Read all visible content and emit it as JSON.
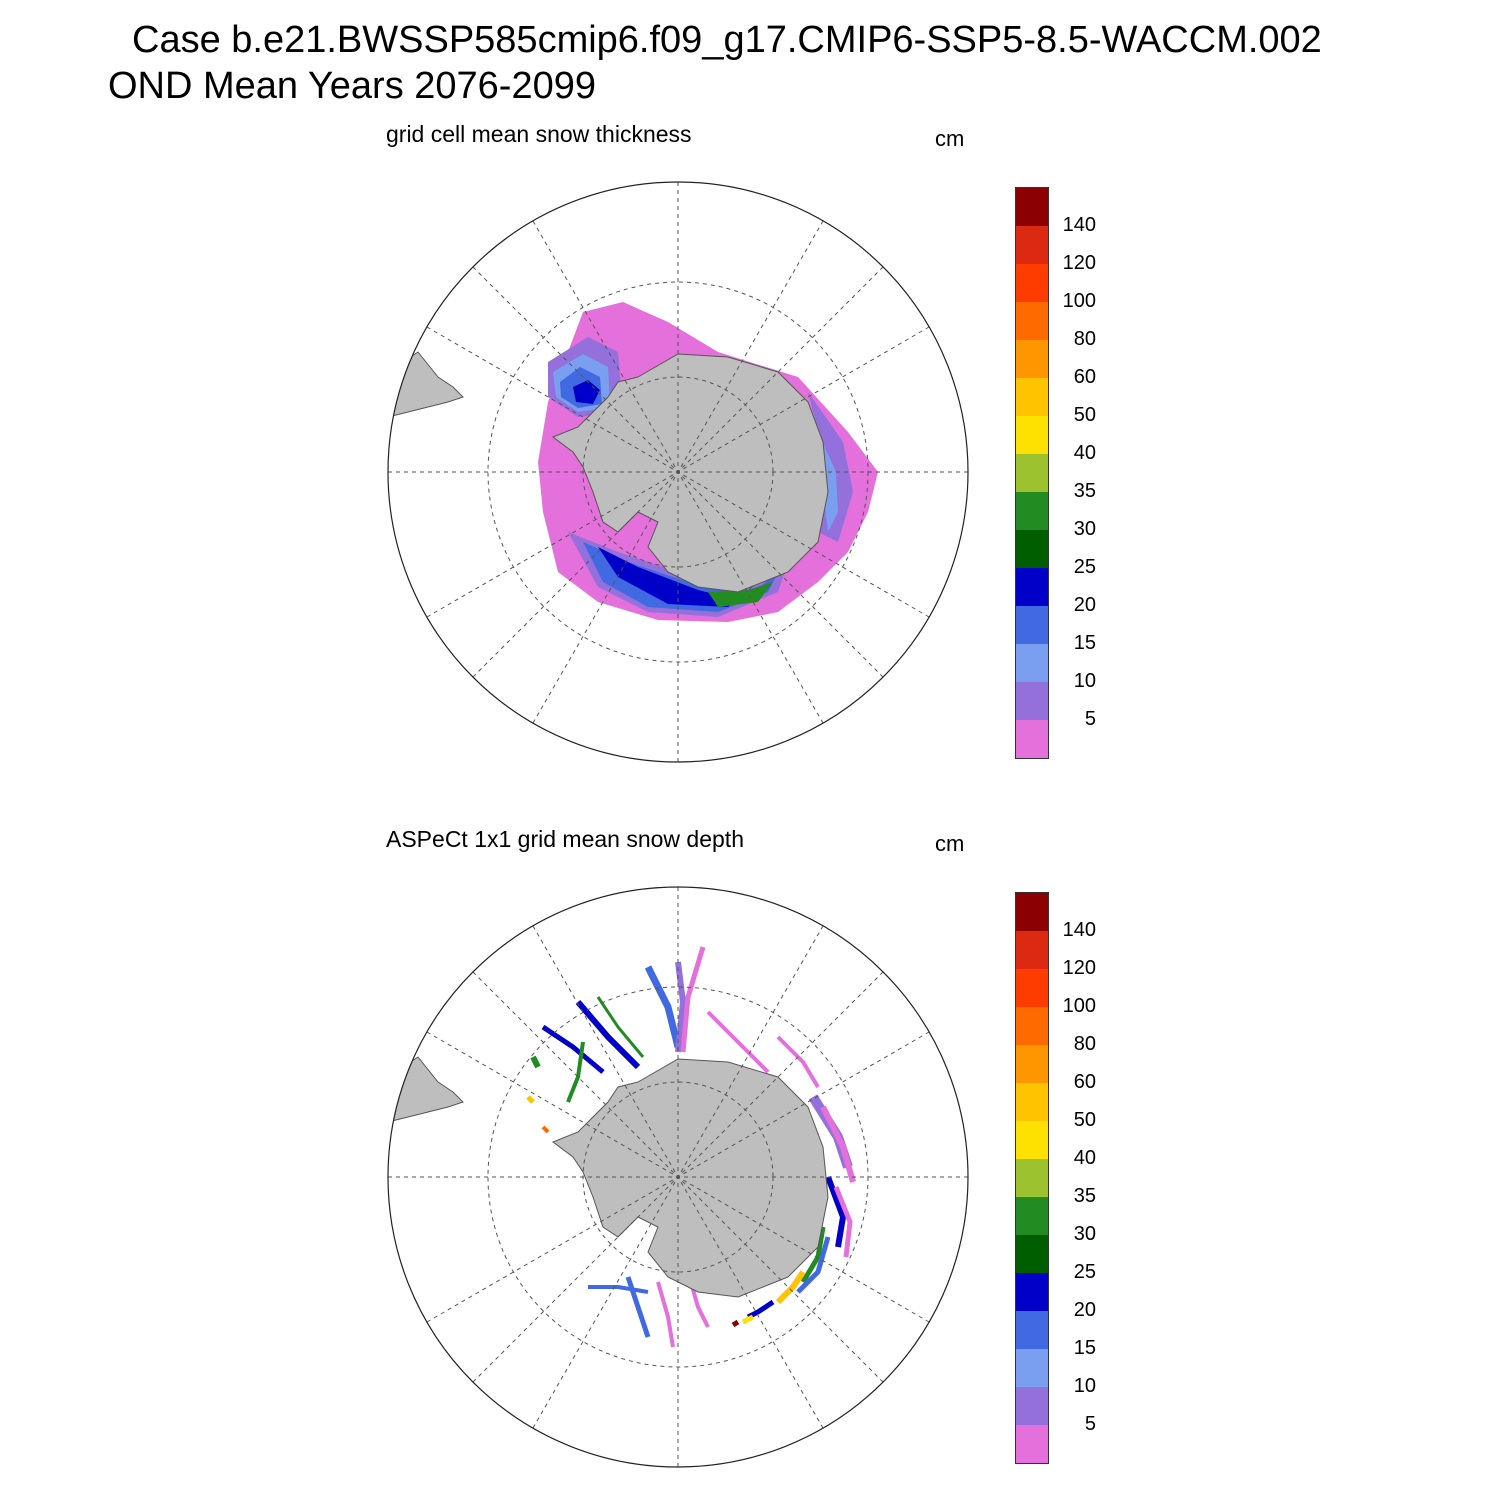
{
  "title": {
    "line1": "Case b.e21.BWSSP585cmip6.f09_g17.CMIP6-SSP5-8.5-WACCM.002",
    "line2": "OND Mean   Years 2076-2099"
  },
  "panels": [
    {
      "id": "model",
      "subtitle": "grid cell mean snow thickness",
      "units": "cm"
    },
    {
      "id": "obs",
      "subtitle": "ASPeCt 1x1 grid mean snow depth",
      "units": "cm"
    }
  ],
  "colorbar": {
    "labels": [
      "140",
      "120",
      "100",
      "80",
      "60",
      "50",
      "40",
      "35",
      "30",
      "25",
      "20",
      "15",
      "10",
      "5"
    ],
    "colors": [
      "#8b0000",
      "#dc2a12",
      "#ff3c00",
      "#ff6a00",
      "#ff9600",
      "#ffc300",
      "#ffe100",
      "#9cc22d",
      "#228b22",
      "#005e00",
      "#0000c8",
      "#4169e1",
      "#7a9ef0",
      "#9370db",
      "#e370db"
    ]
  },
  "map": {
    "projection": "south-polar-stereographic",
    "graticule": "dashed",
    "land_color": "#bebebe"
  }
}
